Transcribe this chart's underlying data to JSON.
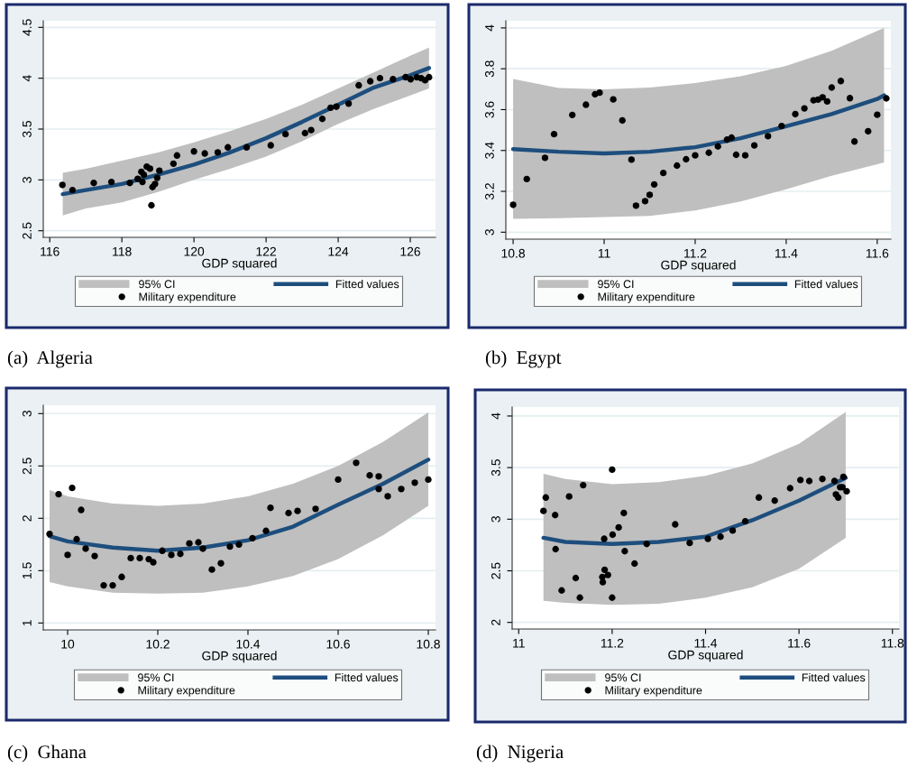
{
  "chart_data": [
    {
      "type": "scatter",
      "title": "(a)  Algeria",
      "xlabel": "GDP squared",
      "annotations": [
        "95% CI"
      ],
      "xlim": [
        115.82,
        126.7
      ],
      "ylim": [
        2.435,
        4.565
      ],
      "xticks": [
        116,
        118,
        120,
        122,
        124,
        126
      ],
      "yticks": [
        2.5,
        3,
        3.5,
        4,
        4.5
      ],
      "grid": "y",
      "legend": "bottom",
      "series": [
        {
          "name": "Military expenditure",
          "type": "scatter",
          "color": "#000000",
          "marker": "circle",
          "x": [
            116.35,
            116.63,
            117.22,
            117.71,
            118.22,
            118.44,
            118.54,
            118.57,
            118.61,
            118.69,
            118.78,
            118.82,
            118.85,
            118.92,
            118.98,
            119.04,
            119.43,
            119.53,
            120.0,
            120.3,
            120.66,
            120.94,
            121.46,
            122.13,
            122.54,
            123.08,
            123.25,
            123.56,
            123.79,
            123.95,
            124.29,
            124.57,
            124.89,
            125.16,
            125.52,
            125.87,
            126.01,
            126.18,
            126.3,
            126.41,
            126.52
          ],
          "values": [
            2.95,
            2.9,
            2.97,
            2.98,
            2.97,
            3.01,
            3.08,
            2.98,
            3.05,
            3.13,
            3.11,
            2.75,
            2.93,
            2.96,
            3.02,
            3.09,
            3.16,
            3.24,
            3.28,
            3.26,
            3.27,
            3.32,
            3.32,
            3.34,
            3.45,
            3.46,
            3.49,
            3.6,
            3.71,
            3.72,
            3.75,
            3.93,
            3.97,
            4.0,
            3.99,
            4.01,
            3.99,
            4.01,
            4.0,
            3.98,
            4.01
          ]
        },
        {
          "name": "Fitted values",
          "type": "line",
          "color": "#1d4e7d",
          "x": [
            116.36,
            117,
            118,
            119,
            120,
            121,
            122,
            123,
            124,
            125,
            126,
            126.52
          ],
          "values": [
            2.86,
            2.9,
            2.96,
            3.05,
            3.15,
            3.27,
            3.41,
            3.57,
            3.74,
            3.91,
            4.03,
            4.1
          ],
          "lower": [
            2.65,
            2.72,
            2.78,
            2.88,
            3.0,
            3.11,
            3.23,
            3.38,
            3.55,
            3.7,
            3.83,
            3.9
          ],
          "upper": [
            3.07,
            3.11,
            3.19,
            3.27,
            3.37,
            3.48,
            3.6,
            3.74,
            3.9,
            4.06,
            4.22,
            4.3
          ]
        }
      ]
    },
    {
      "type": "scatter",
      "title": "(b)  Egypt",
      "xlabel": "GDP squared",
      "annotations": [
        "95% CI"
      ],
      "xlim": [
        10.784,
        11.63
      ],
      "ylim": [
        2.966,
        4.035
      ],
      "xticks": [
        10.8,
        11,
        11.2,
        11.4,
        11.6
      ],
      "yticks": [
        3,
        3.2,
        3.4,
        3.6,
        3.8,
        4
      ],
      "grid": "y",
      "legend": "bottom",
      "series": [
        {
          "name": "Military expenditure",
          "type": "scatter",
          "color": "#000000",
          "marker": "circle",
          "x": [
            10.8,
            10.83,
            10.87,
            10.89,
            10.93,
            10.96,
            10.98,
            10.99,
            11.02,
            11.04,
            11.06,
            11.07,
            11.09,
            11.1,
            11.11,
            11.13,
            11.16,
            11.18,
            11.2,
            11.23,
            11.25,
            11.27,
            11.28,
            11.29,
            11.31,
            11.33,
            11.36,
            11.39,
            11.42,
            11.44,
            11.46,
            11.47,
            11.48,
            11.49,
            11.5,
            11.52,
            11.54,
            11.55,
            11.58,
            11.6,
            11.62
          ],
          "values": [
            3.134,
            3.26,
            3.364,
            3.48,
            3.574,
            3.624,
            3.675,
            3.683,
            3.65,
            3.547,
            3.355,
            3.13,
            3.152,
            3.183,
            3.234,
            3.29,
            3.326,
            3.357,
            3.376,
            3.389,
            3.42,
            3.453,
            3.463,
            3.379,
            3.376,
            3.425,
            3.47,
            3.52,
            3.578,
            3.606,
            3.646,
            3.649,
            3.66,
            3.64,
            3.708,
            3.74,
            3.656,
            3.444,
            3.494,
            3.575,
            3.655
          ]
        },
        {
          "name": "Fitted values",
          "type": "line",
          "color": "#1d4e7d",
          "x": [
            10.8,
            10.9,
            11.0,
            11.1,
            11.2,
            11.3,
            11.4,
            11.5,
            11.6,
            11.615
          ],
          "values": [
            3.407,
            3.394,
            3.386,
            3.394,
            3.416,
            3.46,
            3.519,
            3.578,
            3.652,
            3.67
          ],
          "lower": [
            3.065,
            3.069,
            3.074,
            3.08,
            3.106,
            3.15,
            3.21,
            3.276,
            3.333,
            3.342
          ],
          "upper": [
            3.75,
            3.706,
            3.699,
            3.708,
            3.73,
            3.763,
            3.814,
            3.888,
            3.985,
            4.0
          ]
        }
      ]
    },
    {
      "type": "scatter",
      "title": "(c)  Ghana",
      "xlabel": "GDP squared",
      "annotations": [
        "95% CI"
      ],
      "xlim": [
        9.946,
        10.816
      ],
      "ylim": [
        0.934,
        3.08
      ],
      "xticks": [
        10,
        10.2,
        10.4,
        10.6,
        10.8
      ],
      "yticks": [
        1,
        1.5,
        2,
        2.5,
        3
      ],
      "grid": "y",
      "legend": "bottom",
      "series": [
        {
          "name": "Military expenditure",
          "type": "scatter",
          "color": "#000000",
          "marker": "circle",
          "x": [
            9.96,
            9.98,
            10.0,
            10.01,
            10.02,
            10.03,
            10.04,
            10.06,
            10.08,
            10.1,
            10.12,
            10.14,
            10.16,
            10.18,
            10.19,
            10.21,
            10.23,
            10.25,
            10.27,
            10.29,
            10.3,
            10.32,
            10.34,
            10.36,
            10.38,
            10.41,
            10.44,
            10.45,
            10.49,
            10.51,
            10.55,
            10.6,
            10.64,
            10.67,
            10.69,
            10.69,
            10.71,
            10.74,
            10.77,
            10.8
          ],
          "values": [
            1.85,
            2.23,
            1.65,
            2.29,
            1.8,
            2.08,
            1.71,
            1.64,
            1.36,
            1.36,
            1.44,
            1.62,
            1.62,
            1.61,
            1.58,
            1.69,
            1.65,
            1.66,
            1.76,
            1.77,
            1.71,
            1.51,
            1.57,
            1.73,
            1.75,
            1.81,
            1.88,
            2.1,
            2.05,
            2.07,
            2.09,
            2.37,
            2.53,
            2.41,
            2.4,
            2.28,
            2.21,
            2.28,
            2.34,
            2.37
          ]
        },
        {
          "name": "Fitted values",
          "type": "line",
          "color": "#1d4e7d",
          "x": [
            9.96,
            10.0,
            10.1,
            10.2,
            10.3,
            10.4,
            10.5,
            10.6,
            10.7,
            10.8
          ],
          "values": [
            1.83,
            1.78,
            1.72,
            1.69,
            1.72,
            1.79,
            1.92,
            2.13,
            2.33,
            2.56
          ],
          "lower": [
            1.39,
            1.35,
            1.29,
            1.28,
            1.29,
            1.35,
            1.45,
            1.61,
            1.84,
            2.12
          ],
          "upper": [
            2.27,
            2.21,
            2.14,
            2.12,
            2.14,
            2.21,
            2.33,
            2.5,
            2.73,
            3.01
          ]
        }
      ]
    },
    {
      "type": "scatter",
      "title": "(d)  Nigeria",
      "xlabel": "GDP squared",
      "annotations": [
        "95% CI"
      ],
      "xlim": [
        10.986,
        11.814
      ],
      "ylim": [
        1.936,
        4.087
      ],
      "xticks": [
        11,
        11.2,
        11.4,
        11.6,
        11.8
      ],
      "yticks": [
        2,
        2.5,
        3,
        3.5,
        4
      ],
      "grid": "y",
      "legend": "bottom",
      "series": [
        {
          "name": "Military expenditure",
          "type": "scatter",
          "color": "#000000",
          "marker": "circle",
          "x": [
            11.053,
            11.058,
            11.078,
            11.079,
            11.092,
            11.108,
            11.122,
            11.131,
            11.138,
            11.179,
            11.18,
            11.183,
            11.184,
            11.191,
            11.2,
            11.2,
            11.201,
            11.214,
            11.225,
            11.227,
            11.248,
            11.274,
            11.335,
            11.366,
            11.405,
            11.432,
            11.458,
            11.485,
            11.514,
            11.548,
            11.581,
            11.603,
            11.622,
            11.65,
            11.676,
            11.679,
            11.684,
            11.688,
            11.693,
            11.695,
            11.702
          ],
          "values": [
            3.08,
            3.21,
            3.04,
            2.71,
            2.31,
            3.22,
            2.43,
            2.24,
            3.33,
            2.44,
            2.39,
            2.81,
            2.51,
            2.46,
            3.48,
            2.24,
            2.85,
            2.92,
            3.06,
            2.69,
            2.57,
            2.76,
            2.95,
            2.77,
            2.81,
            2.83,
            2.89,
            2.98,
            3.21,
            3.18,
            3.3,
            3.38,
            3.37,
            3.39,
            3.37,
            3.24,
            3.21,
            3.31,
            3.31,
            3.41,
            3.27
          ]
        },
        {
          "name": "Fitted values",
          "type": "line",
          "color": "#1d4e7d",
          "x": [
            11.053,
            11.1,
            11.2,
            11.3,
            11.4,
            11.5,
            11.6,
            11.7
          ],
          "values": [
            2.82,
            2.78,
            2.76,
            2.78,
            2.83,
            2.99,
            3.18,
            3.4
          ],
          "lower": [
            2.21,
            2.19,
            2.17,
            2.18,
            2.24,
            2.34,
            2.52,
            2.82
          ],
          "upper": [
            3.44,
            3.39,
            3.34,
            3.36,
            3.42,
            3.54,
            3.73,
            4.04
          ]
        }
      ]
    }
  ]
}
